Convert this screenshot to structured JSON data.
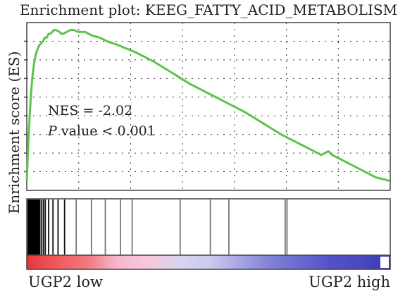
{
  "chart_data": {
    "type": "line",
    "title": "Enrichment plot: KEEG_FATTY_ACID_METABOLISM",
    "ylabel": "Enrichment score (ES)",
    "xlabel": "",
    "xlim": [
      0,
      100
    ],
    "ylim": [
      -0.05,
      0.85
    ],
    "grid": true,
    "line_color": "#5cc34b",
    "annotations": {
      "nes": "NES = -2.02",
      "pvalue_label": "P",
      "pvalue_rest": " value < 0.001"
    },
    "series": [
      {
        "x": [
          0,
          0.5,
          1,
          1.5,
          2,
          2.5,
          3,
          3.5,
          4,
          4.5,
          5,
          5.5,
          6,
          6.5,
          7,
          7.5,
          8,
          9,
          9.5,
          10,
          11,
          12,
          13,
          14,
          15,
          16,
          18,
          20,
          22,
          25,
          30,
          35,
          40,
          45,
          50,
          55,
          60,
          65,
          70,
          72,
          74,
          76,
          78,
          80,
          81,
          82,
          83,
          84,
          85,
          86,
          88,
          90,
          92,
          94,
          96,
          98,
          100
        ],
        "values": [
          0.0,
          0.24,
          0.42,
          0.55,
          0.63,
          0.68,
          0.71,
          0.73,
          0.74,
          0.75,
          0.77,
          0.77,
          0.79,
          0.79,
          0.8,
          0.81,
          0.81,
          0.8,
          0.79,
          0.79,
          0.8,
          0.81,
          0.81,
          0.8,
          0.8,
          0.8,
          0.78,
          0.77,
          0.75,
          0.73,
          0.69,
          0.64,
          0.58,
          0.52,
          0.47,
          0.42,
          0.37,
          0.31,
          0.25,
          0.23,
          0.21,
          0.19,
          0.17,
          0.15,
          0.14,
          0.15,
          0.16,
          0.14,
          0.13,
          0.12,
          0.1,
          0.08,
          0.06,
          0.04,
          0.02,
          0.01,
          0.0
        ]
      }
    ],
    "gene_hits": [
      0.4,
      1.0,
      1.6,
      2.1,
      2.6,
      3.1,
      3.6,
      4.1,
      4.6,
      5.1,
      6.0,
      7.2,
      8.6,
      10.4,
      13.6,
      17.8,
      21.6,
      25.8,
      29.0,
      42.2,
      50.5,
      55.6,
      71.1,
      71.6
    ],
    "color_scale": [
      "#e8363a",
      "#ee5a5c",
      "#f07a7f",
      "#f6b8cf",
      "#f5c7dc",
      "#d7d4ee",
      "#cccbee",
      "#a8a6e4",
      "#8282d6",
      "#6a6ad0",
      "#5353c8",
      "#4a49c2",
      "#3a39b0"
    ],
    "group_labels": {
      "low": "UGP2 low",
      "high": "UGP2 high"
    }
  }
}
